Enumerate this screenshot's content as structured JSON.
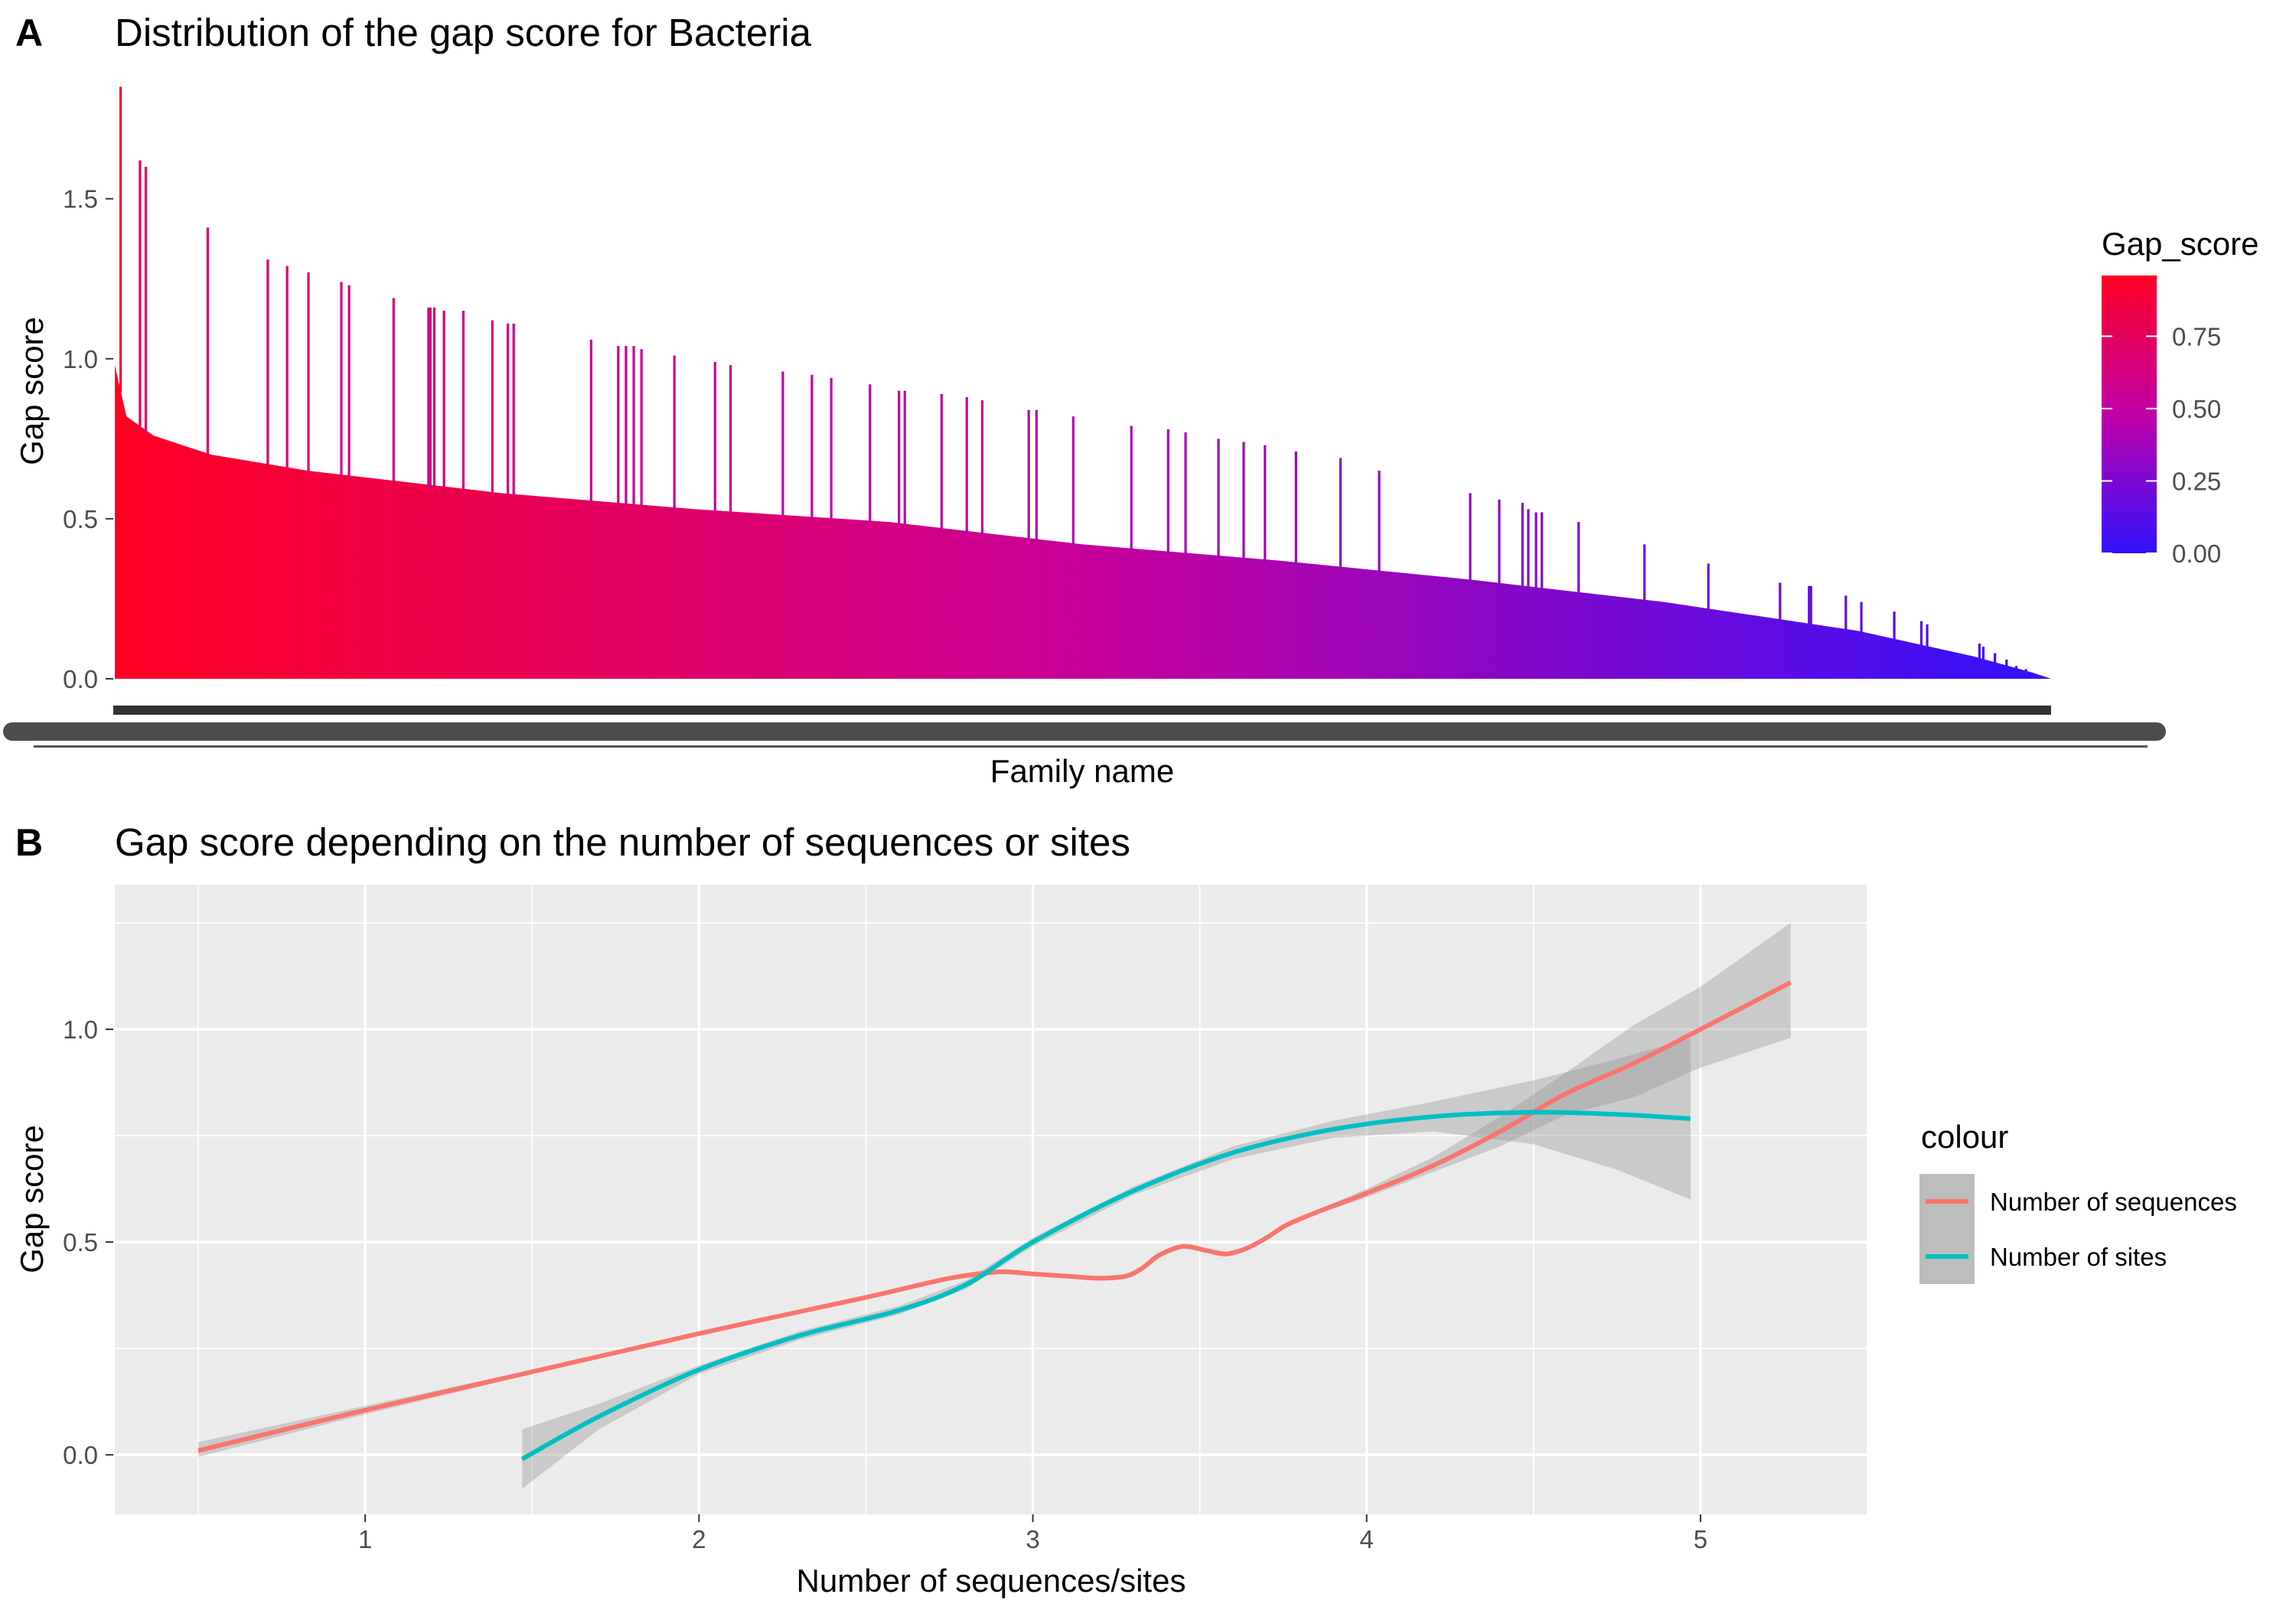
{
  "chart_data": [
    {
      "panel": "A",
      "type": "bar",
      "title": "Distribution of the gap score for Bacteria",
      "xlabel": "Family name",
      "ylabel": "Gap score",
      "ylim": [
        0,
        1.87
      ],
      "y_ticks": [
        0.0,
        0.5,
        1.0,
        1.5
      ],
      "y_tick_labels": [
        "0.0",
        "0.5",
        "1.0",
        "1.5"
      ],
      "sorted_descending": true,
      "baseline_profile": [
        [
          0.0,
          0.98
        ],
        [
          0.006,
          0.82
        ],
        [
          0.02,
          0.76
        ],
        [
          0.05,
          0.7
        ],
        [
          0.1,
          0.65
        ],
        [
          0.2,
          0.58
        ],
        [
          0.3,
          0.53
        ],
        [
          0.4,
          0.49
        ],
        [
          0.5,
          0.42
        ],
        [
          0.6,
          0.37
        ],
        [
          0.7,
          0.31
        ],
        [
          0.8,
          0.24
        ],
        [
          0.9,
          0.15
        ],
        [
          0.96,
          0.07
        ],
        [
          0.99,
          0.02
        ],
        [
          1.0,
          0.0
        ]
      ],
      "spikes": [
        [
          0.003,
          1.85
        ],
        [
          0.013,
          1.62
        ],
        [
          0.016,
          1.6
        ],
        [
          0.048,
          1.41
        ],
        [
          0.079,
          1.31
        ],
        [
          0.089,
          1.29
        ],
        [
          0.1,
          1.27
        ],
        [
          0.117,
          1.24
        ],
        [
          0.121,
          1.23
        ],
        [
          0.144,
          1.19
        ],
        [
          0.162,
          1.16
        ],
        [
          0.163,
          1.16
        ],
        [
          0.165,
          1.16
        ],
        [
          0.17,
          1.15
        ],
        [
          0.18,
          1.15
        ],
        [
          0.195,
          1.12
        ],
        [
          0.203,
          1.11
        ],
        [
          0.206,
          1.11
        ],
        [
          0.246,
          1.06
        ],
        [
          0.26,
          1.04
        ],
        [
          0.264,
          1.04
        ],
        [
          0.268,
          1.04
        ],
        [
          0.272,
          1.03
        ],
        [
          0.289,
          1.01
        ],
        [
          0.31,
          0.99
        ],
        [
          0.318,
          0.98
        ],
        [
          0.345,
          0.96
        ],
        [
          0.36,
          0.95
        ],
        [
          0.37,
          0.94
        ],
        [
          0.39,
          0.92
        ],
        [
          0.405,
          0.9
        ],
        [
          0.408,
          0.9
        ],
        [
          0.427,
          0.89
        ],
        [
          0.44,
          0.88
        ],
        [
          0.448,
          0.87
        ],
        [
          0.472,
          0.84
        ],
        [
          0.476,
          0.84
        ],
        [
          0.495,
          0.82
        ],
        [
          0.525,
          0.79
        ],
        [
          0.544,
          0.78
        ],
        [
          0.553,
          0.77
        ],
        [
          0.57,
          0.75
        ],
        [
          0.583,
          0.74
        ],
        [
          0.594,
          0.73
        ],
        [
          0.61,
          0.71
        ],
        [
          0.633,
          0.69
        ],
        [
          0.653,
          0.65
        ],
        [
          0.7,
          0.58
        ],
        [
          0.715,
          0.56
        ],
        [
          0.727,
          0.55
        ],
        [
          0.73,
          0.53
        ],
        [
          0.734,
          0.52
        ],
        [
          0.737,
          0.52
        ],
        [
          0.756,
          0.49
        ],
        [
          0.79,
          0.42
        ],
        [
          0.823,
          0.36
        ],
        [
          0.86,
          0.3
        ],
        [
          0.875,
          0.29
        ],
        [
          0.876,
          0.29
        ],
        [
          0.894,
          0.26
        ],
        [
          0.902,
          0.24
        ],
        [
          0.919,
          0.21
        ],
        [
          0.933,
          0.18
        ],
        [
          0.936,
          0.17
        ],
        [
          0.963,
          0.11
        ],
        [
          0.965,
          0.1
        ],
        [
          0.971,
          0.08
        ],
        [
          0.977,
          0.06
        ],
        [
          0.982,
          0.04
        ],
        [
          0.987,
          0.03
        ]
      ],
      "color_legend": {
        "title": "Gap_score",
        "ticks": [
          "0.00",
          "0.25",
          "0.50",
          "0.75"
        ],
        "tick_values": [
          0.0,
          0.25,
          0.5,
          0.75
        ],
        "range": [
          0.0,
          0.96
        ],
        "low_color": "#3311ff",
        "mid_color": "#c000a8",
        "high_color": "#ff0022"
      }
    },
    {
      "panel": "B",
      "type": "line",
      "title": "Gap score depending on the number of sequences or sites",
      "xlabel": "Number of sequences/sites",
      "ylabel": "Gap score",
      "xlim": [
        0.25,
        5.5
      ],
      "ylim": [
        -0.14,
        1.34
      ],
      "x_ticks": [
        1,
        2,
        3,
        4,
        5
      ],
      "x_tick_labels": [
        "1",
        "2",
        "3",
        "4",
        "5"
      ],
      "y_ticks": [
        0.0,
        0.5,
        1.0
      ],
      "y_tick_labels": [
        "0.0",
        "0.5",
        "1.0"
      ],
      "grid": true,
      "legend_title": "colour",
      "legend_position": "right",
      "series": [
        {
          "name": "Number of sequences",
          "color": "#f8766d",
          "x": [
            0.5,
            1.0,
            1.5,
            2.0,
            2.5,
            2.75,
            2.9,
            3.0,
            3.1,
            3.2,
            3.28,
            3.33,
            3.38,
            3.45,
            3.52,
            3.58,
            3.64,
            3.7,
            3.76,
            3.85,
            4.0,
            4.2,
            4.4,
            4.6,
            4.8,
            5.0,
            5.27
          ],
          "y": [
            0.01,
            0.105,
            0.195,
            0.285,
            0.37,
            0.415,
            0.43,
            0.425,
            0.42,
            0.415,
            0.42,
            0.44,
            0.47,
            0.49,
            0.48,
            0.472,
            0.485,
            0.51,
            0.54,
            0.57,
            0.615,
            0.68,
            0.76,
            0.85,
            0.92,
            1.0,
            1.11
          ],
          "ci_upper": [
            0.03,
            0.115,
            0.2,
            0.29,
            0.375,
            0.42,
            0.435,
            0.43,
            0.425,
            0.42,
            0.425,
            0.445,
            0.475,
            0.495,
            0.485,
            0.477,
            0.49,
            0.515,
            0.545,
            0.575,
            0.625,
            0.7,
            0.795,
            0.9,
            1.01,
            1.1,
            1.25
          ],
          "ci_lower": [
            -0.005,
            0.095,
            0.19,
            0.28,
            0.365,
            0.41,
            0.425,
            0.42,
            0.415,
            0.41,
            0.415,
            0.435,
            0.465,
            0.485,
            0.475,
            0.467,
            0.48,
            0.505,
            0.535,
            0.565,
            0.605,
            0.665,
            0.725,
            0.8,
            0.84,
            0.91,
            0.98
          ]
        },
        {
          "name": "Number of sites",
          "color": "#00bfc4",
          "x": [
            1.47,
            1.7,
            2.0,
            2.3,
            2.6,
            2.8,
            3.0,
            3.3,
            3.6,
            3.9,
            4.2,
            4.5,
            4.75,
            4.97
          ],
          "y": [
            -0.01,
            0.09,
            0.2,
            0.28,
            0.34,
            0.4,
            0.5,
            0.62,
            0.71,
            0.765,
            0.795,
            0.805,
            0.8,
            0.79
          ],
          "ci_upper": [
            0.06,
            0.12,
            0.21,
            0.29,
            0.35,
            0.41,
            0.51,
            0.63,
            0.725,
            0.785,
            0.83,
            0.88,
            0.93,
            0.98
          ],
          "ci_lower": [
            -0.08,
            0.06,
            0.19,
            0.27,
            0.33,
            0.39,
            0.49,
            0.61,
            0.695,
            0.745,
            0.76,
            0.73,
            0.67,
            0.6
          ]
        }
      ]
    }
  ]
}
